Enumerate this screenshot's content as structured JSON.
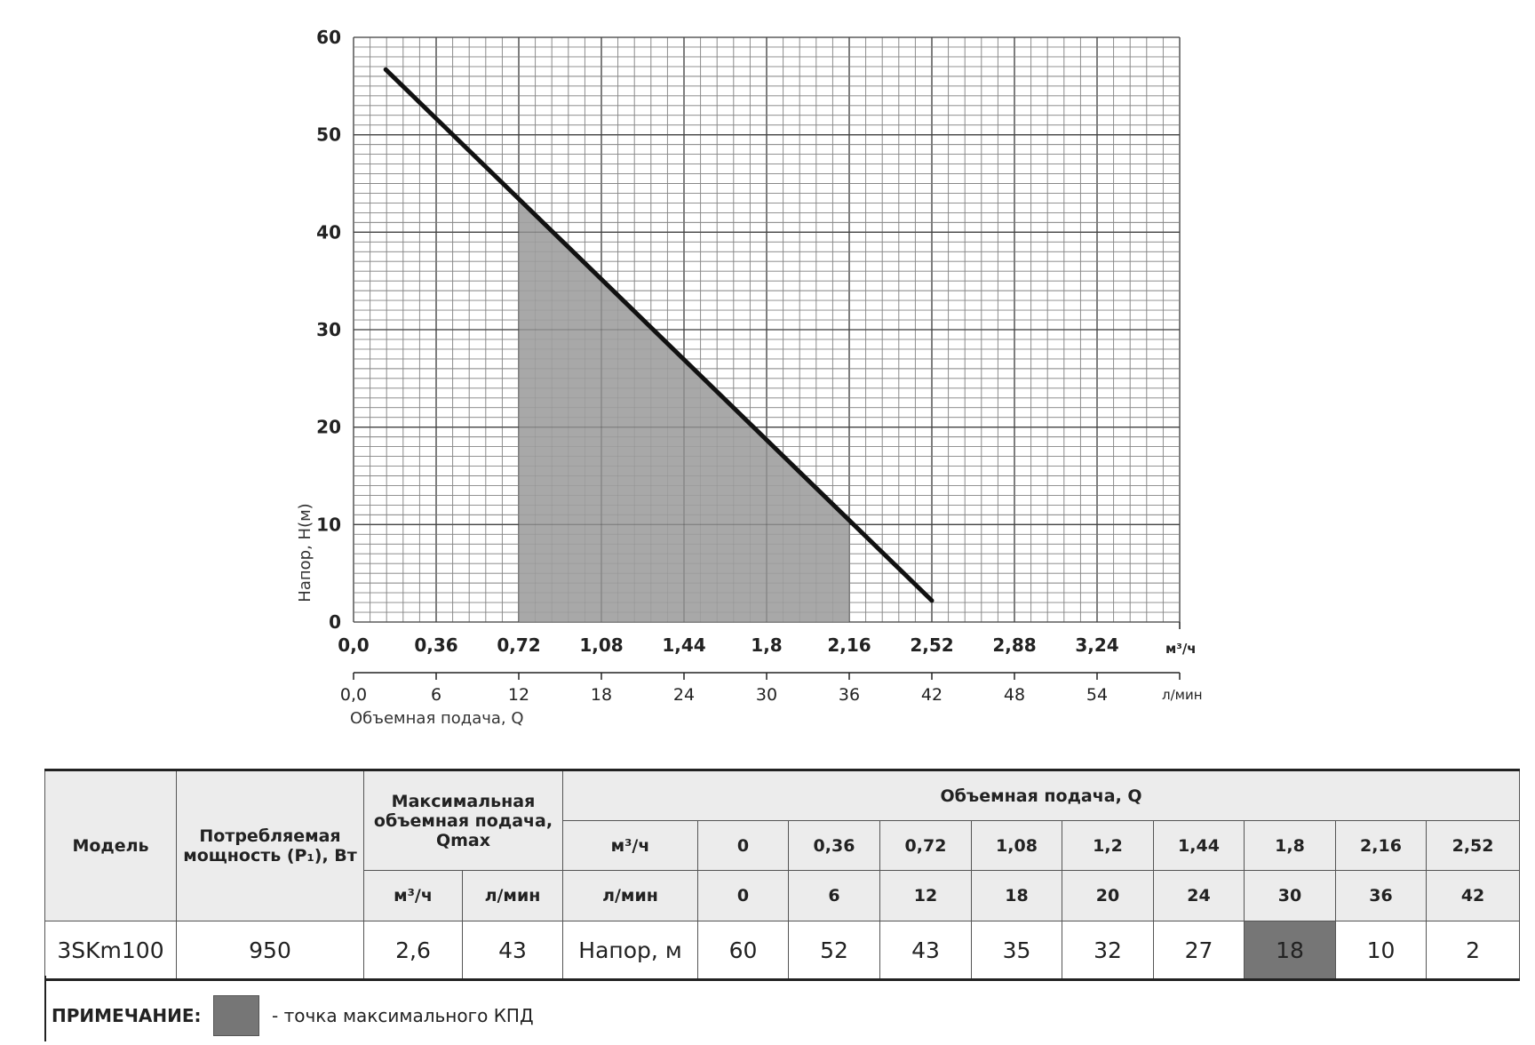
{
  "chart_data": {
    "type": "line",
    "ylabel": "Напор, H(м)",
    "xlabel": "Объемная подача, Q",
    "x_unit_primary": "м³/ч",
    "x_unit_secondary": "л/мин",
    "ylim": [
      0,
      60
    ],
    "xlim": [
      0,
      3.6
    ],
    "y_ticks": [
      "0",
      "10",
      "20",
      "30",
      "40",
      "50",
      "60"
    ],
    "x_ticks_primary": [
      "0,0",
      "0,36",
      "0,72",
      "1,08",
      "1,44",
      "1,8",
      "2,16",
      "2,52",
      "2,88",
      "3,24"
    ],
    "x_ticks_secondary": [
      "0,0",
      "6",
      "12",
      "18",
      "24",
      "30",
      "36",
      "42",
      "48",
      "54"
    ],
    "grid": true,
    "series": [
      {
        "x": [
          0.14,
          2.52
        ],
        "y": [
          56.7,
          2.2
        ]
      }
    ],
    "shaded_region": {
      "x_from": 0.72,
      "x_to": 2.16
    }
  },
  "table": {
    "h_model": "Модель",
    "h_power": "Потребляемая мощность (P₁), Вт",
    "h_qmax": "Максимальная объемная подача, Qmax",
    "h_flow": "Объемная подача, Q",
    "h_unit_m3": "м³/ч",
    "h_unit_lmin": "л/мин",
    "row_m3_label": "м³/ч",
    "row_lmin_label": "л/мин",
    "flow_m3": [
      "0",
      "0,36",
      "0,72",
      "1,08",
      "1,2",
      "1,44",
      "1,8",
      "2,16",
      "2,52"
    ],
    "flow_lmin": [
      "0",
      "6",
      "12",
      "18",
      "20",
      "24",
      "30",
      "36",
      "42"
    ],
    "model": "3SKm100",
    "power": "950",
    "qmax_m3": "2,6",
    "qmax_lmin": "43",
    "head_label": "Напор, м",
    "heads": [
      "60",
      "52",
      "43",
      "35",
      "32",
      "27",
      "18",
      "10",
      "2"
    ],
    "highlight_index": 6
  },
  "note": {
    "label": "ПРИМЕЧАНИЕ:",
    "text": "- точка максимального КПД"
  },
  "colors": {
    "shade": "#a8a8a8",
    "highlight": "#767676",
    "curve": "#111111"
  }
}
